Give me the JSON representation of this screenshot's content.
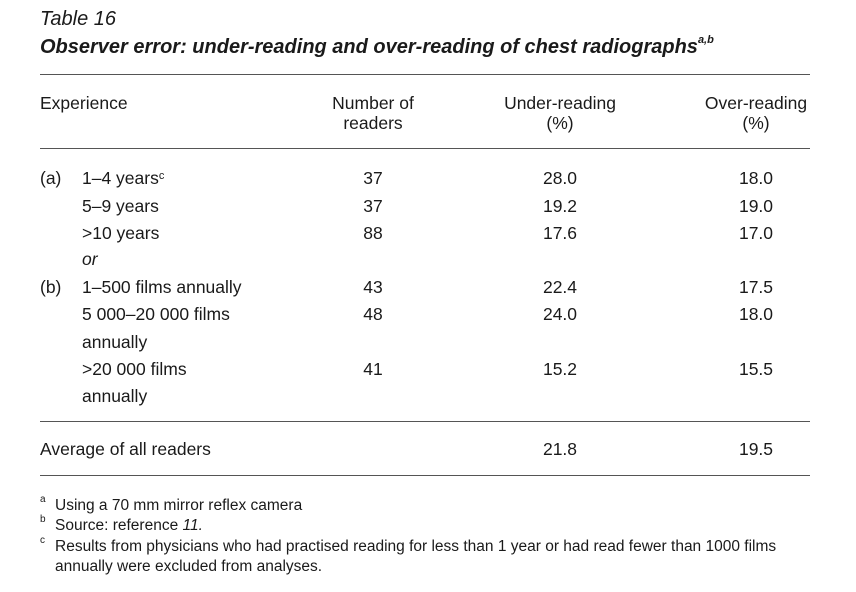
{
  "table_label": "Table 16",
  "title": "Observer error: under-reading and over-reading of chest radiographs",
  "title_sup": "a,b",
  "headers": {
    "experience": "Experience",
    "readers_l1": "Number of",
    "readers_l2": "readers",
    "under_l1": "Under-reading",
    "under_l2": "(%)",
    "over_l1": "Over-reading",
    "over_l2": "(%)"
  },
  "groups": {
    "a": "(a)",
    "b": "(b)",
    "or": "or"
  },
  "rows": [
    {
      "label": "1–4 years",
      "sup": "c",
      "readers": "37",
      "under": "28.0",
      "over": "18.0"
    },
    {
      "label": "5–9 years",
      "readers": "37",
      "under": "19.2",
      "over": "19.0"
    },
    {
      "label": ">10 years",
      "readers": "88",
      "under": "17.6",
      "over": "17.0"
    },
    {
      "label": "1–500 films annually",
      "readers": "43",
      "under": "22.4",
      "over": "17.5"
    },
    {
      "label": "5 000–20 000 films",
      "label2": "annually",
      "readers": "48",
      "under": "24.0",
      "over": "18.0"
    },
    {
      "label": ">20 000 films",
      "label2": "annually",
      "readers": "41",
      "under": "15.2",
      "over": "15.5"
    }
  ],
  "average": {
    "label": "Average of all readers",
    "under": "21.8",
    "over": "19.5"
  },
  "footnotes": {
    "a": {
      "mark": "a",
      "text": "Using a 70 mm mirror reflex camera"
    },
    "b": {
      "mark": "b",
      "text_pre": "Source: reference ",
      "text_ref": "11."
    },
    "c": {
      "mark": "c",
      "line1": "Results from physicians who had practised reading for less than 1 year or had read fewer than 1000 films",
      "line2": "annually were excluded from analyses."
    }
  }
}
